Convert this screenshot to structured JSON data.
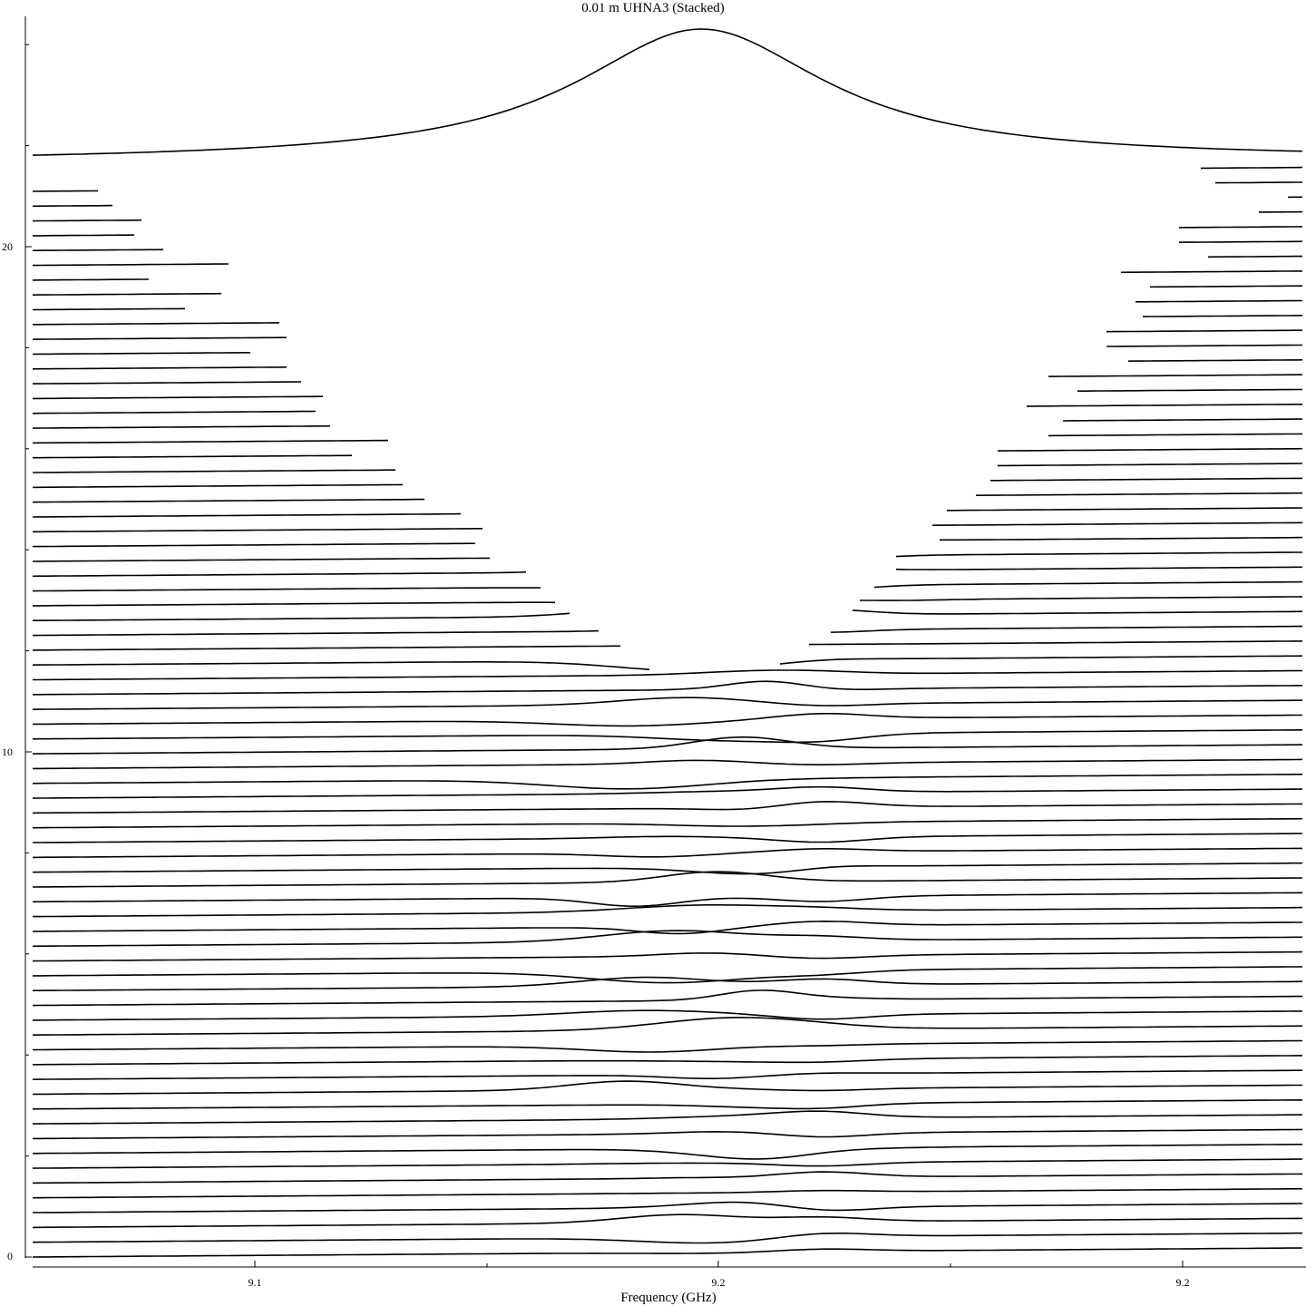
{
  "chart_data": {
    "type": "line",
    "title": "0.01 m UHNA3 (Stacked)",
    "xlabel": "Frequency (GHz)",
    "ylabel": "",
    "x_tick_labels": [
      "9.1",
      "9.2",
      "9.2"
    ],
    "y_tick_labels": [
      "0",
      "10",
      "20"
    ],
    "ylim": [
      0,
      24.4
    ],
    "trace_count": 75,
    "trace_spacing": 0.293,
    "top_peak": {
      "x_frac": 0.525,
      "height": 2.6,
      "half_width": 0.12
    },
    "notes": "Stacked spectra; lower traces nearly flat with small dips near the center, upper traces broken by a widening gap around the resonance, topmost trace is a single Lorentzian-like peak."
  }
}
